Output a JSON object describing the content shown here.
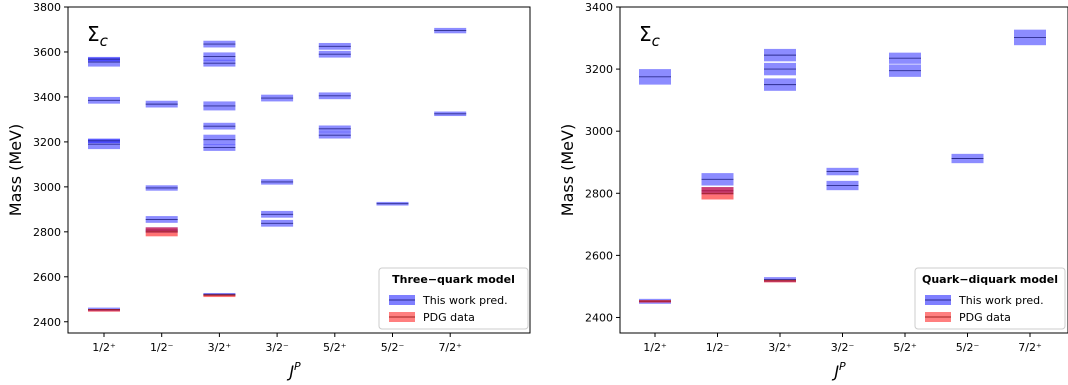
{
  "colors": {
    "prediction": "#0000ff",
    "pdg": "#ff0000"
  },
  "chart_data": [
    {
      "type": "scatter",
      "title": "",
      "annotation": "Σ",
      "annotation_sub": "c",
      "xlabel": "J",
      "xlabel_sup": "P",
      "ylabel": "Mass (MeV)",
      "ylim": [
        2350,
        3800
      ],
      "yticks": [
        2400,
        2600,
        2800,
        3000,
        3200,
        3400,
        3600,
        3800
      ],
      "categories": [
        "1/2⁺",
        "1/2⁻",
        "3/2⁺",
        "3/2⁻",
        "5/2⁺",
        "5/2⁻",
        "7/2⁺"
      ],
      "legend": {
        "title": "Three−quark model",
        "placement": "lower-right",
        "entries": [
          "This work pred.",
          "PDG data"
        ]
      },
      "series": [
        {
          "name": "This work pred.",
          "color": "#0000ff",
          "levels": [
            {
              "cat": 0,
              "mass": 2455,
              "err": 8
            },
            {
              "cat": 0,
              "mass": 3190,
              "err": 22
            },
            {
              "cat": 0,
              "mass": 3205,
              "err": 10
            },
            {
              "cat": 0,
              "mass": 3385,
              "err": 15
            },
            {
              "cat": 0,
              "mass": 3555,
              "err": 20
            },
            {
              "cat": 0,
              "mass": 3568,
              "err": 10
            },
            {
              "cat": 1,
              "mass": 2808,
              "err": 12
            },
            {
              "cat": 1,
              "mass": 2855,
              "err": 15
            },
            {
              "cat": 1,
              "mass": 2995,
              "err": 12
            },
            {
              "cat": 1,
              "mass": 3368,
              "err": 15
            },
            {
              "cat": 2,
              "mass": 2522,
              "err": 6
            },
            {
              "cat": 2,
              "mass": 3175,
              "err": 15
            },
            {
              "cat": 2,
              "mass": 3210,
              "err": 22
            },
            {
              "cat": 2,
              "mass": 3270,
              "err": 15
            },
            {
              "cat": 2,
              "mass": 3360,
              "err": 20
            },
            {
              "cat": 2,
              "mass": 3550,
              "err": 15
            },
            {
              "cat": 2,
              "mass": 3580,
              "err": 18
            },
            {
              "cat": 2,
              "mass": 3635,
              "err": 15
            },
            {
              "cat": 3,
              "mass": 2838,
              "err": 15
            },
            {
              "cat": 3,
              "mass": 2878,
              "err": 15
            },
            {
              "cat": 3,
              "mass": 3022,
              "err": 12
            },
            {
              "cat": 3,
              "mass": 3395,
              "err": 15
            },
            {
              "cat": 4,
              "mass": 3230,
              "err": 15
            },
            {
              "cat": 4,
              "mass": 3258,
              "err": 15
            },
            {
              "cat": 4,
              "mass": 3405,
              "err": 15
            },
            {
              "cat": 4,
              "mass": 3590,
              "err": 15
            },
            {
              "cat": 4,
              "mass": 3625,
              "err": 15
            },
            {
              "cat": 5,
              "mass": 2925,
              "err": 8
            },
            {
              "cat": 6,
              "mass": 3325,
              "err": 10
            },
            {
              "cat": 6,
              "mass": 3695,
              "err": 12
            }
          ]
        },
        {
          "name": "PDG data",
          "color": "#ff0000",
          "levels": [
            {
              "cat": 0,
              "mass": 2453,
              "err": 3
            },
            {
              "cat": 1,
              "mass": 2800,
              "err": 20
            },
            {
              "cat": 2,
              "mass": 2518,
              "err": 3
            }
          ]
        }
      ]
    },
    {
      "type": "scatter",
      "title": "",
      "annotation": "Σ",
      "annotation_sub": "c",
      "xlabel": "J",
      "xlabel_sup": "P",
      "ylabel": "Mass (MeV)",
      "ylim": [
        2350,
        3400
      ],
      "yticks": [
        2400,
        2600,
        2800,
        3000,
        3200,
        3400
      ],
      "categories": [
        "1/2⁺",
        "1/2⁻",
        "3/2⁺",
        "3/2⁻",
        "5/2⁺",
        "5/2⁻",
        "7/2⁺"
      ],
      "legend": {
        "title": "Quark−diquark model",
        "placement": "lower-right",
        "entries": [
          "This work pred.",
          "PDG data"
        ]
      },
      "series": [
        {
          "name": "This work pred.",
          "color": "#0000ff",
          "levels": [
            {
              "cat": 0,
              "mass": 2452,
              "err": 8
            },
            {
              "cat": 0,
              "mass": 3175,
              "err": 25
            },
            {
              "cat": 1,
              "mass": 2845,
              "err": 20
            },
            {
              "cat": 1,
              "mass": 2808,
              "err": 12
            },
            {
              "cat": 2,
              "mass": 2522,
              "err": 8
            },
            {
              "cat": 2,
              "mass": 3150,
              "err": 20
            },
            {
              "cat": 2,
              "mass": 3200,
              "err": 20
            },
            {
              "cat": 2,
              "mass": 3245,
              "err": 20
            },
            {
              "cat": 3,
              "mass": 2825,
              "err": 15
            },
            {
              "cat": 3,
              "mass": 2870,
              "err": 12
            },
            {
              "cat": 4,
              "mass": 3195,
              "err": 20
            },
            {
              "cat": 4,
              "mass": 3235,
              "err": 18
            },
            {
              "cat": 5,
              "mass": 2912,
              "err": 15
            },
            {
              "cat": 6,
              "mass": 3302,
              "err": 25
            }
          ]
        },
        {
          "name": "PDG data",
          "color": "#ff0000",
          "levels": [
            {
              "cat": 0,
              "mass": 2453,
              "err": 3
            },
            {
              "cat": 1,
              "mass": 2800,
              "err": 20
            },
            {
              "cat": 2,
              "mass": 2518,
              "err": 3
            }
          ]
        }
      ]
    }
  ]
}
